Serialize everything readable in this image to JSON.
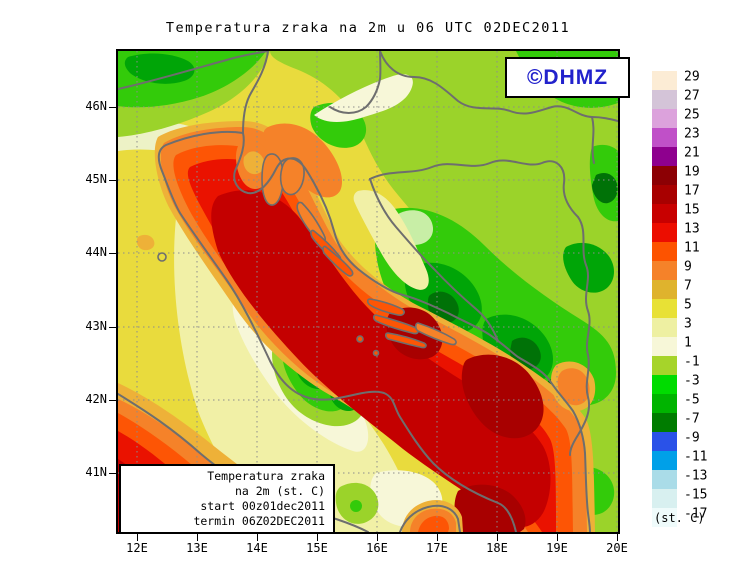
{
  "title": "Temperatura zraka na 2m u 06 UTC 02DEC2011",
  "badge": {
    "text": "©DHMZ",
    "color": "#2222cc"
  },
  "axes": {
    "x_ticks": [
      "12E",
      "13E",
      "14E",
      "15E",
      "16E",
      "17E",
      "18E",
      "19E",
      "20E"
    ],
    "y_ticks": [
      "46N",
      "45N",
      "44N",
      "43N",
      "42N",
      "41N"
    ]
  },
  "colorbar": {
    "unit_label": "(st. C)",
    "entries": [
      {
        "label": "29",
        "color": "#fcecd5"
      },
      {
        "label": "27",
        "color": "#d4c4d8"
      },
      {
        "label": "25",
        "color": "#dca2dc"
      },
      {
        "label": "23",
        "color": "#c050c8"
      },
      {
        "label": "21",
        "color": "#8e008e"
      },
      {
        "label": "19",
        "color": "#8c0004"
      },
      {
        "label": "17",
        "color": "#a80000"
      },
      {
        "label": "15",
        "color": "#c80000"
      },
      {
        "label": "13",
        "color": "#ec0d00"
      },
      {
        "label": "11",
        "color": "#fd5300"
      },
      {
        "label": "9",
        "color": "#f58229"
      },
      {
        "label": "7",
        "color": "#dfb32d"
      },
      {
        "label": "5",
        "color": "#e8e135"
      },
      {
        "label": "3",
        "color": "#eef0a2"
      },
      {
        "label": "1",
        "color": "#f7f7d8"
      },
      {
        "label": "-1",
        "color": "#a6d42a"
      },
      {
        "label": "-3",
        "color": "#00dc00"
      },
      {
        "label": "-5",
        "color": "#00b400"
      },
      {
        "label": "-7",
        "color": "#007c00"
      },
      {
        "label": "-9",
        "color": "#2a52e8"
      },
      {
        "label": "-11",
        "color": "#00a0e8"
      },
      {
        "label": "-13",
        "color": "#aadce8"
      },
      {
        "label": "-15",
        "color": "#d8f0f0"
      },
      {
        "label": "-17",
        "color": "#effbfb"
      }
    ]
  },
  "info_box": {
    "lines": [
      "Temperatura zraka",
      "na 2m (st. C)",
      "start 00z01dec2011",
      "termin 06Z02DEC2011"
    ]
  },
  "map": {
    "coast_color": "#6e6e6e",
    "grid_color": "#8c8c8c",
    "palette": {
      "band_17_19": "#a80000",
      "band_15_17": "#c40000",
      "band_13_15": "#ea1200",
      "band_11_13": "#fd5505",
      "band_9_11": "#f58229",
      "band_7_9": "#eeb138",
      "band_5_7": "#e9db3d",
      "band_3_5": "#f1f0a6",
      "band_1_3": "#f7f7d8",
      "band_m1_1": "#9bd32a",
      "band_m3_m1": "#33cb0a",
      "band_m5_m3": "#00a507",
      "band_m7_m5": "#007207",
      "pale_nw": "#edf2c6",
      "pale_green": "#c8eea6"
    }
  }
}
